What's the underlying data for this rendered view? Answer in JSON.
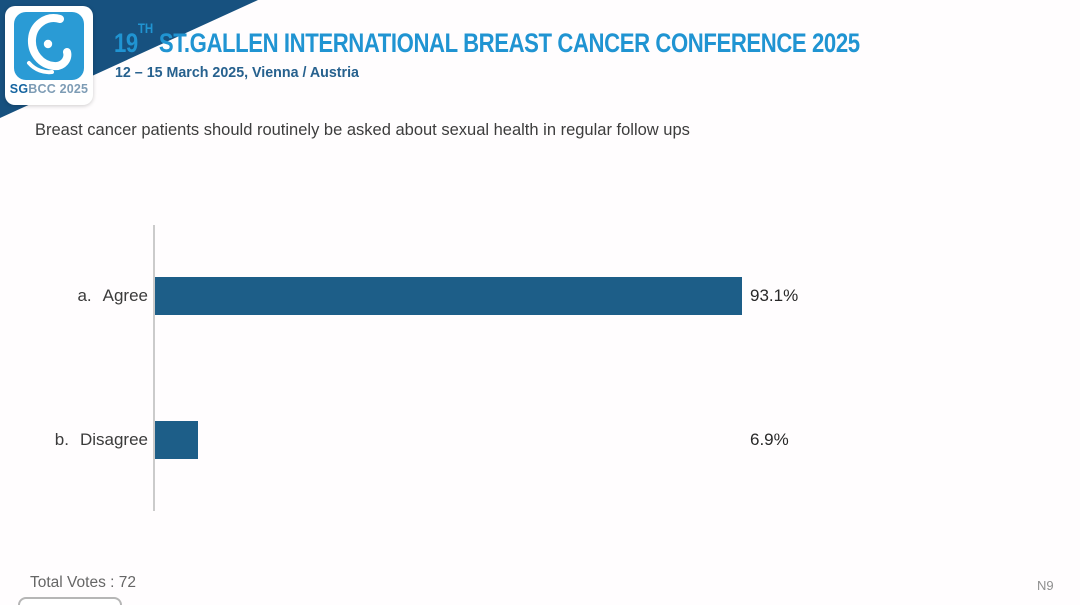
{
  "header": {
    "logo": {
      "square_color": "#2a9bd5",
      "text_sg": "SG",
      "text_rest": "BCC 2025"
    },
    "title_number": "19",
    "title_superscript": "TH",
    "title_rest": " ST.GALLEN INTERNATIONAL BREAST CANCER CONFERENCE 2025",
    "subtitle": "12 – 15 March 2025, Vienna / Austria",
    "title_color": "#2094d2",
    "accent_navy": "#17517f"
  },
  "question": "Breast cancer patients should routinely be asked about sexual health in regular follow ups",
  "chart_data": {
    "type": "bar",
    "orientation": "horizontal",
    "prefixes": [
      "a.",
      "b."
    ],
    "categories": [
      "Agree",
      "Disagree"
    ],
    "values": [
      93.1,
      6.9
    ],
    "value_labels": [
      "93.1%",
      "6.9%"
    ],
    "xlim": [
      0,
      100
    ],
    "bar_color": "#1d5e88",
    "grid": "off",
    "total_votes": 72
  },
  "footer": {
    "total_votes_text": "Total Votes : 72",
    "slide_code": "N9"
  }
}
